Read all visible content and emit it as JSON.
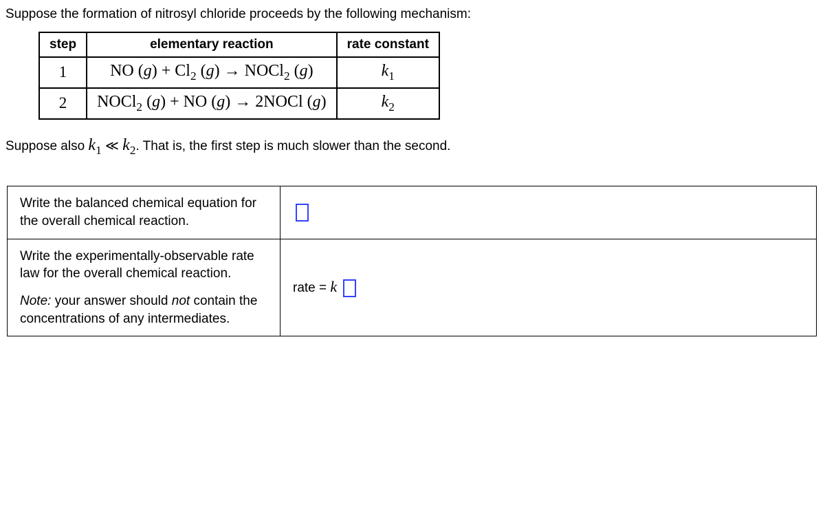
{
  "intro": "Suppose the formation of nitrosyl chloride proceeds by the following mechanism:",
  "table": {
    "headers": {
      "step": "step",
      "reaction": "elementary reaction",
      "rate": "rate constant"
    },
    "rows": [
      {
        "step": "1",
        "reaction_html": "NO <span class='paren'>(<span class='italic'>g</span>)</span> + Cl<span class='sub'>2</span> <span class='paren'>(<span class='italic'>g</span>)</span> <span class='arrow'>→</span> NOCl<span class='sub'>2</span> <span class='paren'>(<span class='italic'>g</span>)</span>",
        "rate_html": "<span class='kvar'>k<span class='sub'>1</span></span>"
      },
      {
        "step": "2",
        "reaction_html": "NOCl<span class='sub'>2</span> <span class='paren'>(<span class='italic'>g</span>)</span> + NO <span class='paren'>(<span class='italic'>g</span>)</span> <span class='arrow'>→</span> 2NOCl <span class='paren'>(<span class='italic'>g</span>)</span>",
        "rate_html": "<span class='kvar'>k<span class='sub'>2</span></span>"
      }
    ]
  },
  "suppose2_prefix": "Suppose also ",
  "suppose2_k1_html": "<span class='kvar'>k<span class='sub'>1</span></span>",
  "suppose2_ll": " ≪ ",
  "suppose2_k2_html": "<span class='kvar'>k<span class='sub'>2</span></span>",
  "suppose2_suffix": ". That is, the first step is much slower than the second.",
  "answers": {
    "row1_prompt": "Write the balanced chemical equation for the overall chemical reaction.",
    "row2_prompt_line1": "Write the experimentally-observable rate law for the overall chemical reaction.",
    "row2_note_prefix": "Note:",
    "row2_note_rest_a": " your answer should ",
    "row2_note_not": "not",
    "row2_note_rest_b": " contain the concentrations of any intermediates.",
    "rate_label": "rate",
    "equals": " = ",
    "k_label": "k"
  },
  "colors": {
    "input_border": "#3341ff",
    "text": "#000000",
    "background": "#ffffff"
  }
}
